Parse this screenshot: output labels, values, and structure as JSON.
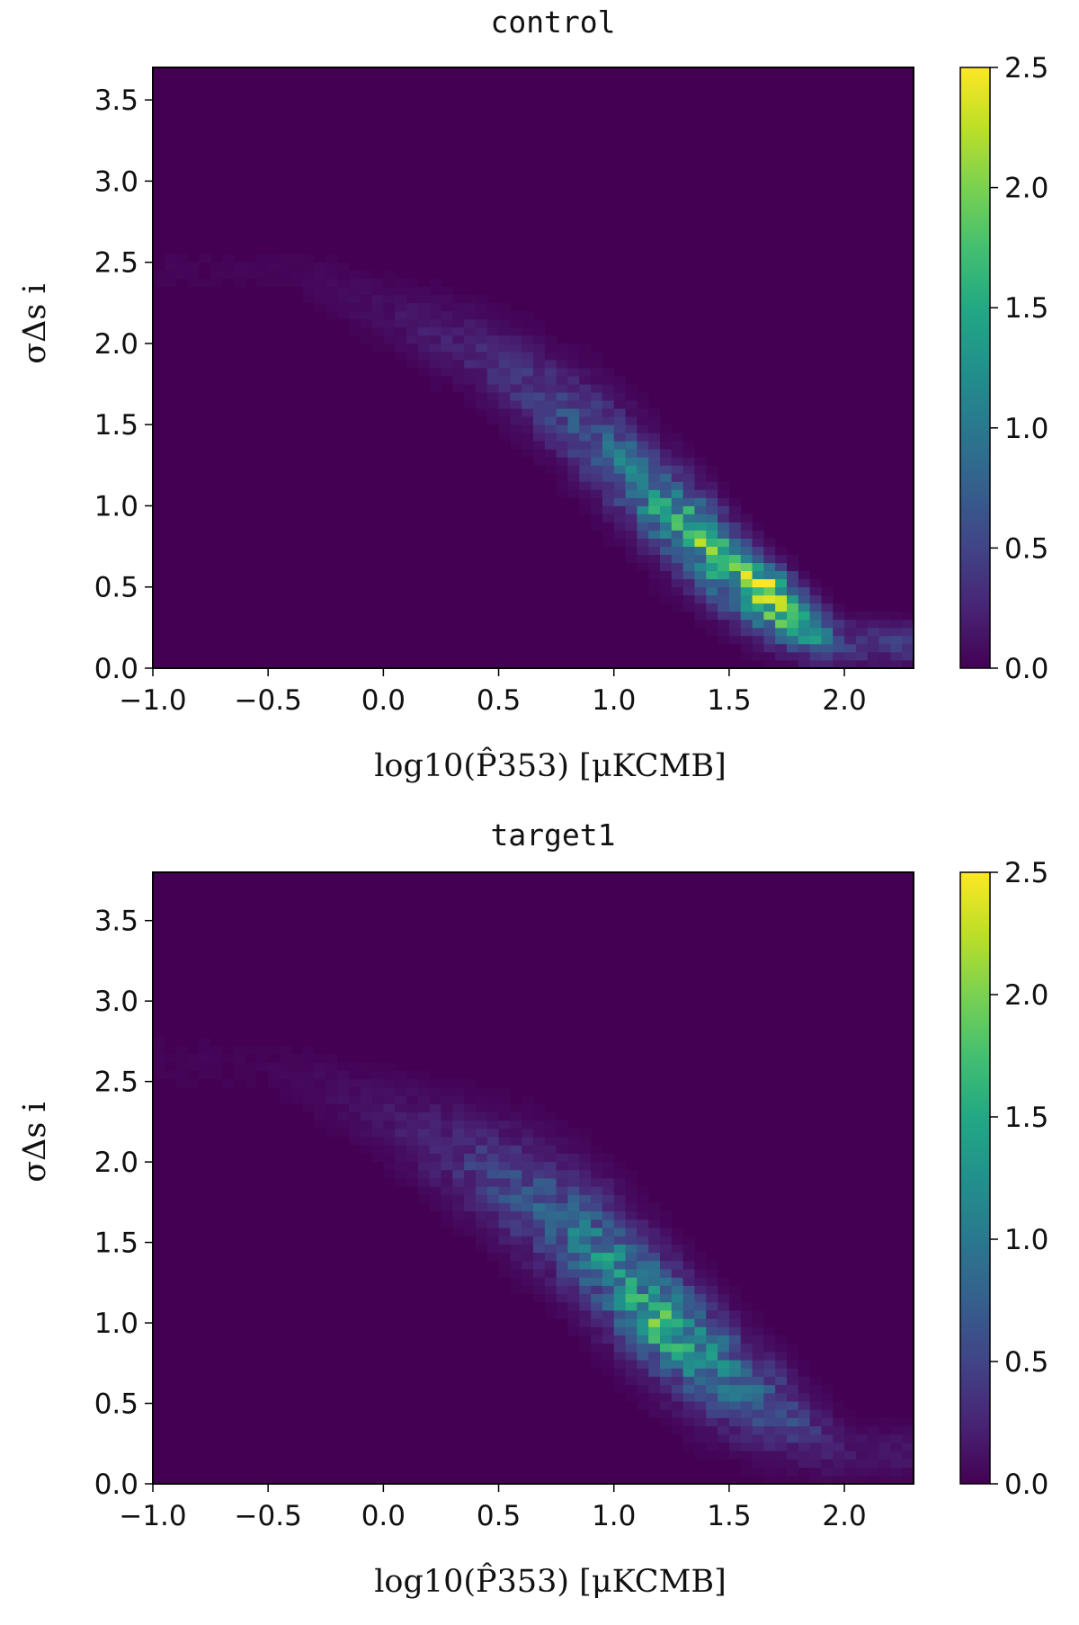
{
  "chart_data": [
    {
      "type": "heatmap",
      "title": "control",
      "xlabel": "log10(P̂353) [μKCMB]",
      "ylabel": "σΔs i",
      "xlim": [
        -1.0,
        2.3
      ],
      "ylim": [
        0.0,
        3.7
      ],
      "x_ticks": [
        "−1.0",
        "−0.5",
        "0.0",
        "0.5",
        "1.0",
        "1.5",
        "2.0"
      ],
      "y_ticks": [
        "0.0",
        "0.5",
        "1.0",
        "1.5",
        "2.0",
        "2.5",
        "3.0",
        "3.5"
      ],
      "colorbar": {
        "min": 0.0,
        "max": 2.5,
        "ticks": [
          "0.0",
          "0.5",
          "1.0",
          "1.5",
          "2.0",
          "2.5"
        ],
        "colormap": "viridis"
      },
      "density_ridge": [
        {
          "x": -0.4,
          "y": 2.45,
          "v": 0.03
        },
        {
          "x": 0.0,
          "y": 2.2,
          "v": 0.1
        },
        {
          "x": 0.4,
          "y": 1.95,
          "v": 0.25
        },
        {
          "x": 0.7,
          "y": 1.65,
          "v": 0.45
        },
        {
          "x": 1.0,
          "y": 1.3,
          "v": 0.8
        },
        {
          "x": 1.2,
          "y": 1.0,
          "v": 1.3
        },
        {
          "x": 1.4,
          "y": 0.75,
          "v": 1.6
        },
        {
          "x": 1.55,
          "y": 0.55,
          "v": 1.8
        },
        {
          "x": 1.7,
          "y": 0.4,
          "v": 1.9
        },
        {
          "x": 1.85,
          "y": 0.25,
          "v": 1.3
        },
        {
          "x": 2.0,
          "y": 0.15,
          "v": 0.4
        }
      ],
      "peak": {
        "x": 1.67,
        "y": 0.5,
        "v": 2.0
      },
      "spread": [
        {
          "x": -0.4,
          "s": 0.1
        },
        {
          "x": 0.0,
          "s": 0.13
        },
        {
          "x": 0.5,
          "s": 0.17
        },
        {
          "x": 1.0,
          "s": 0.2
        },
        {
          "x": 1.4,
          "s": 0.18
        },
        {
          "x": 1.8,
          "s": 0.12
        },
        {
          "x": 2.1,
          "s": 0.08
        }
      ]
    },
    {
      "type": "heatmap",
      "title": "target1",
      "xlabel": "log10(P̂353) [μKCMB]",
      "ylabel": "σΔs i",
      "xlim": [
        -1.0,
        2.3
      ],
      "ylim": [
        0.0,
        3.8
      ],
      "x_ticks": [
        "−1.0",
        "−0.5",
        "0.0",
        "0.5",
        "1.0",
        "1.5",
        "2.0"
      ],
      "y_ticks": [
        "0.0",
        "0.5",
        "1.0",
        "1.5",
        "2.0",
        "2.5",
        "3.0",
        "3.5"
      ],
      "colorbar": {
        "min": 0.0,
        "max": 2.5,
        "ticks": [
          "0.0",
          "0.5",
          "1.0",
          "1.5",
          "2.0",
          "2.5"
        ],
        "colormap": "viridis"
      },
      "density_ridge": [
        {
          "x": -0.5,
          "y": 2.6,
          "v": 0.03
        },
        {
          "x": -0.1,
          "y": 2.35,
          "v": 0.1
        },
        {
          "x": 0.3,
          "y": 2.05,
          "v": 0.3
        },
        {
          "x": 0.7,
          "y": 1.7,
          "v": 0.7
        },
        {
          "x": 0.95,
          "y": 1.4,
          "v": 1.05
        },
        {
          "x": 1.15,
          "y": 1.1,
          "v": 1.35
        },
        {
          "x": 1.35,
          "y": 0.85,
          "v": 1.25
        },
        {
          "x": 1.55,
          "y": 0.62,
          "v": 0.85
        },
        {
          "x": 1.8,
          "y": 0.4,
          "v": 0.45
        },
        {
          "x": 2.0,
          "y": 0.2,
          "v": 0.15
        }
      ],
      "peak": {
        "x": 1.17,
        "y": 0.95,
        "v": 1.6
      },
      "spread": [
        {
          "x": -0.5,
          "s": 0.12
        },
        {
          "x": 0.0,
          "s": 0.16
        },
        {
          "x": 0.5,
          "s": 0.22
        },
        {
          "x": 1.0,
          "s": 0.25
        },
        {
          "x": 1.4,
          "s": 0.22
        },
        {
          "x": 1.8,
          "s": 0.16
        },
        {
          "x": 2.1,
          "s": 0.1
        }
      ]
    }
  ]
}
